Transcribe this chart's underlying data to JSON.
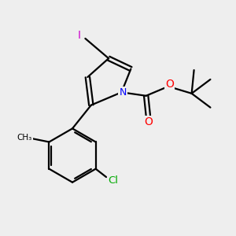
{
  "background_color": "#eeeeee",
  "bond_color": "#000000",
  "atom_colors": {
    "I": "#cc00cc",
    "N": "#0000ff",
    "O": "#ff0000",
    "Cl": "#00aa00",
    "C": "#000000"
  },
  "figsize": [
    3.0,
    3.0
  ],
  "dpi": 100
}
